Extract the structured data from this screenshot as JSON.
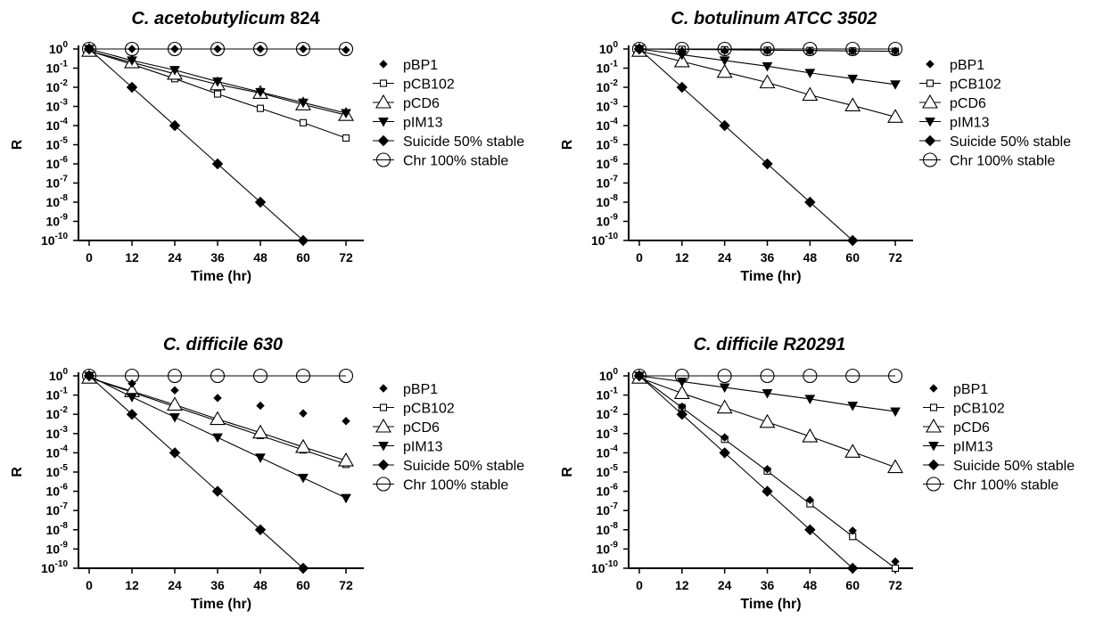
{
  "chart_data": [
    {
      "type": "scatter",
      "title_plain": "C. ",
      "title_italic": "acetobutylicum",
      "title_tail": " 824",
      "xlabel": "Time (hr)",
      "ylabel": "R",
      "x_ticks": [
        0,
        12,
        24,
        36,
        48,
        60,
        72
      ],
      "y_log": true,
      "y_tick_exponents": [
        0,
        -1,
        -2,
        -3,
        -4,
        -5,
        -6,
        -7,
        -8,
        -9,
        -10
      ],
      "xlim": [
        -3,
        77
      ],
      "ylim_exp": [
        -10,
        0
      ],
      "x": [
        0,
        12,
        24,
        36,
        48,
        60,
        72
      ],
      "series": [
        {
          "name": "pBP1",
          "marker": "diamond-small",
          "line": false,
          "log10_values": [
            0,
            0,
            0,
            0,
            0,
            0,
            -0.05
          ]
        },
        {
          "name": "pCB102",
          "marker": "square-open",
          "line": true,
          "log10_values": [
            -0.1,
            -0.8,
            -1.55,
            -2.35,
            -3.1,
            -3.85,
            -4.65
          ]
        },
        {
          "name": "pCD6",
          "marker": "triangle-open",
          "line": true,
          "log10_values": [
            -0.1,
            -0.7,
            -1.3,
            -1.85,
            -2.3,
            -2.9,
            -3.45
          ]
        },
        {
          "name": "pIM13",
          "marker": "triangle-down",
          "line": true,
          "log10_values": [
            0,
            -0.6,
            -1.1,
            -1.7,
            -2.25,
            -2.8,
            -3.35
          ]
        },
        {
          "name": "Suicide 50% stable",
          "marker": "diamond",
          "line": true,
          "log10_values": [
            0,
            -2,
            -4,
            -6,
            -8,
            -10,
            null
          ]
        },
        {
          "name": "Chr 100% stable",
          "marker": "circle-open",
          "line": true,
          "log10_values": [
            0,
            0,
            0,
            0,
            0,
            0,
            0
          ]
        }
      ]
    },
    {
      "type": "scatter",
      "title_plain": "C. ",
      "title_italic": "botulinum ATCC 3502",
      "title_tail": "",
      "xlabel": "Time (hr)",
      "ylabel": "R",
      "x_ticks": [
        0,
        12,
        24,
        36,
        48,
        60,
        72
      ],
      "y_log": true,
      "y_tick_exponents": [
        0,
        -1,
        -2,
        -3,
        -4,
        -5,
        -6,
        -7,
        -8,
        -9,
        -10
      ],
      "xlim": [
        -3,
        77
      ],
      "ylim_exp": [
        -10,
        0
      ],
      "x": [
        0,
        12,
        24,
        36,
        48,
        60,
        72
      ],
      "series": [
        {
          "name": "pBP1",
          "marker": "diamond-small",
          "line": false,
          "log10_values": [
            0,
            -0.1,
            -0.1,
            -0.1,
            -0.1,
            -0.1,
            -0.1
          ]
        },
        {
          "name": "pCB102",
          "marker": "square-open",
          "line": true,
          "log10_values": [
            0,
            -0.02,
            -0.04,
            -0.06,
            -0.08,
            -0.1,
            -0.12
          ]
        },
        {
          "name": "pCD6",
          "marker": "triangle-open",
          "line": true,
          "log10_values": [
            -0.1,
            -0.65,
            -1.2,
            -1.75,
            -2.4,
            -2.95,
            -3.55
          ]
        },
        {
          "name": "pIM13",
          "marker": "triangle-down",
          "line": true,
          "log10_values": [
            0,
            -0.3,
            -0.6,
            -0.9,
            -1.25,
            -1.55,
            -1.85
          ]
        },
        {
          "name": "Suicide 50% stable",
          "marker": "diamond",
          "line": true,
          "log10_values": [
            0,
            -2,
            -4,
            -6,
            -8,
            -10,
            null
          ]
        },
        {
          "name": "Chr 100% stable",
          "marker": "circle-open",
          "line": true,
          "log10_values": [
            0,
            0,
            0,
            0,
            0,
            0,
            0
          ]
        }
      ]
    },
    {
      "type": "scatter",
      "title_plain": "C. ",
      "title_italic": "difficile 630",
      "title_tail": "",
      "xlabel": "Time (hr)",
      "ylabel": "R",
      "x_ticks": [
        0,
        12,
        24,
        36,
        48,
        60,
        72
      ],
      "y_log": true,
      "y_tick_exponents": [
        0,
        -1,
        -2,
        -3,
        -4,
        -5,
        -6,
        -7,
        -8,
        -9,
        -10
      ],
      "xlim": [
        -3,
        77
      ],
      "ylim_exp": [
        -10,
        0
      ],
      "x": [
        0,
        12,
        24,
        36,
        48,
        60,
        72
      ],
      "series": [
        {
          "name": "pBP1",
          "marker": "diamond-small",
          "line": false,
          "log10_values": [
            0,
            -0.4,
            -0.75,
            -1.15,
            -1.55,
            -1.95,
            -2.35
          ]
        },
        {
          "name": "pCB102",
          "marker": "square-open",
          "line": true,
          "log10_values": [
            -0.1,
            -0.85,
            -1.6,
            -2.35,
            -3.1,
            -3.85,
            -4.6
          ]
        },
        {
          "name": "pCD6",
          "marker": "triangle-open",
          "line": true,
          "log10_values": [
            -0.1,
            -0.8,
            -1.5,
            -2.25,
            -2.95,
            -3.7,
            -4.4
          ]
        },
        {
          "name": "pIM13",
          "marker": "triangle-down",
          "line": true,
          "log10_values": [
            0,
            -1.1,
            -2.15,
            -3.2,
            -4.25,
            -5.3,
            -6.35
          ]
        },
        {
          "name": "Suicide 50% stable",
          "marker": "diamond",
          "line": true,
          "log10_values": [
            0,
            -2,
            -4,
            -6,
            -8,
            -10,
            null
          ]
        },
        {
          "name": "Chr 100% stable",
          "marker": "circle-open",
          "line": true,
          "log10_values": [
            0,
            0,
            0,
            0,
            0,
            0,
            0
          ]
        }
      ]
    },
    {
      "type": "scatter",
      "title_plain": "C. ",
      "title_italic": "difficile R20291",
      "title_tail": "",
      "xlabel": "Time (hr)",
      "ylabel": "R",
      "x_ticks": [
        0,
        12,
        24,
        36,
        48,
        60,
        72
      ],
      "y_log": true,
      "y_tick_exponents": [
        0,
        -1,
        -2,
        -3,
        -4,
        -5,
        -6,
        -7,
        -8,
        -9,
        -10
      ],
      "xlim": [
        -3,
        77
      ],
      "ylim_exp": [
        -10,
        0
      ],
      "x": [
        0,
        12,
        24,
        36,
        48,
        60,
        72
      ],
      "series": [
        {
          "name": "pBP1",
          "marker": "diamond-small",
          "line": false,
          "log10_values": [
            0,
            -1.6,
            -3.2,
            -4.85,
            -6.45,
            -8.05,
            -9.65
          ]
        },
        {
          "name": "pCB102",
          "marker": "square-open",
          "line": true,
          "log10_values": [
            0,
            -1.65,
            -3.3,
            -4.95,
            -6.65,
            -8.35,
            -10
          ]
        },
        {
          "name": "pCD6",
          "marker": "triangle-open",
          "line": true,
          "log10_values": [
            -0.1,
            -0.9,
            -1.65,
            -2.4,
            -3.15,
            -3.95,
            -4.75
          ]
        },
        {
          "name": "pIM13",
          "marker": "triangle-down",
          "line": true,
          "log10_values": [
            0,
            -0.3,
            -0.6,
            -0.9,
            -1.2,
            -1.55,
            -1.85
          ]
        },
        {
          "name": "Suicide 50% stable",
          "marker": "diamond",
          "line": true,
          "log10_values": [
            0,
            -2,
            -4,
            -6,
            -8,
            -10,
            null
          ]
        },
        {
          "name": "Chr 100% stable",
          "marker": "circle-open",
          "line": true,
          "log10_values": [
            0,
            0,
            0,
            0,
            0,
            0,
            0
          ]
        }
      ]
    }
  ]
}
